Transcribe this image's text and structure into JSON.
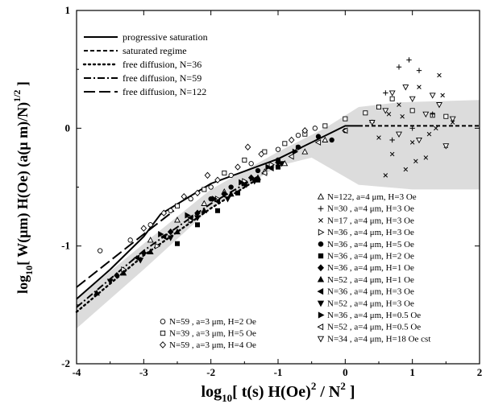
{
  "chart_data": {
    "type": "scatter",
    "x_label_parts": [
      "log",
      "10",
      "[ t(s) H(Oe)",
      "2",
      " / N",
      "2",
      " ]"
    ],
    "y_label_parts": [
      "log",
      "10",
      "[ W(μm) H(Oe)  (a(μ m)/N)",
      "1/2",
      " ]"
    ],
    "xlim": [
      -4,
      2
    ],
    "ylim": [
      -2,
      1
    ],
    "x_ticks": [
      -4,
      -3,
      -2,
      -1,
      0,
      1,
      2
    ],
    "y_ticks": [
      -2,
      -1,
      0,
      1
    ],
    "x_tick_labels": [
      "-4",
      "-3",
      "-2",
      "-1",
      "0",
      "1",
      "2"
    ],
    "y_tick_labels": [
      "-2",
      "-1",
      "0",
      "1"
    ],
    "band": {
      "upper": [
        [
          -4,
          -1.45
        ],
        [
          -3,
          -0.98
        ],
        [
          -2,
          -0.52
        ],
        [
          -1,
          -0.2
        ],
        [
          -0.3,
          0.0
        ],
        [
          0.2,
          0.18
        ],
        [
          0.8,
          0.22
        ],
        [
          2,
          0.24
        ]
      ],
      "lower": [
        [
          2,
          -0.52
        ],
        [
          1,
          -0.52
        ],
        [
          0.2,
          -0.48
        ],
        [
          -0.5,
          -0.25
        ],
        [
          -1,
          -0.32
        ],
        [
          -2,
          -0.68
        ],
        [
          -3,
          -1.2
        ],
        [
          -4,
          -1.7
        ]
      ]
    },
    "lines": [
      {
        "name": "progressive saturation",
        "style": "solid",
        "points": [
          [
            -4,
            -1.45
          ],
          [
            -3.5,
            -1.2
          ],
          [
            -3,
            -0.92
          ],
          [
            -2.75,
            -0.73
          ],
          [
            -2,
            -0.47
          ],
          [
            -1,
            -0.26
          ],
          [
            0,
            0.02
          ],
          [
            0.2,
            0.02
          ]
        ]
      },
      {
        "name": "saturated regime",
        "style": "dash",
        "points": [
          [
            0.2,
            0.02
          ],
          [
            2,
            0.02
          ]
        ]
      },
      {
        "name": "free diffusion, N=36",
        "style": "dot",
        "points": [
          [
            -4,
            -1.56
          ],
          [
            -3,
            -1.08
          ],
          [
            -2,
            -0.68
          ],
          [
            -1.3,
            -0.43
          ]
        ]
      },
      {
        "name": "free diffusion, N=59",
        "style": "dashdot",
        "points": [
          [
            -4,
            -1.52
          ],
          [
            -3,
            -1.04
          ],
          [
            -2,
            -0.64
          ],
          [
            -1.3,
            -0.41
          ]
        ]
      },
      {
        "name": "free diffusion, N=122",
        "style": "longdash",
        "points": [
          [
            -4,
            -1.35
          ],
          [
            -3,
            -0.9
          ],
          [
            -2.55,
            -0.7
          ]
        ]
      }
    ],
    "legend_lines": [
      "progressive saturation",
      "saturated regime",
      "free diffusion, N=36",
      "free diffusion, N=59",
      "free diffusion, N=122"
    ],
    "legend_markers_right": [
      {
        "marker": "triangle-up-open",
        "label": "N=122, a=4 μm, H=3 Oe"
      },
      {
        "marker": "plus",
        "label": "N=30 , a=4 μm, H=3 Oe"
      },
      {
        "marker": "cross",
        "label": "N=17 , a=4 μm, H=3 Oe"
      },
      {
        "marker": "triangle-right-open",
        "label": "N=36 , a=4 μm, H=3 Oe"
      },
      {
        "marker": "circle-filled",
        "label": "N=36 , a=4 μm, H=5 Oe"
      },
      {
        "marker": "square-filled",
        "label": "N=36 , a=4 μm, H=2 Oe"
      },
      {
        "marker": "diamond-filled",
        "label": "N=36 , a=4 μm, H=1 Oe"
      },
      {
        "marker": "triangle-up-filled",
        "label": "N=52 , a=4 μm, H=1 Oe"
      },
      {
        "marker": "triangle-left-filled",
        "label": "N=36 , a=4 μm, H=3 Oe"
      },
      {
        "marker": "triangle-down-filled",
        "label": "N=52 , a=4 μm, H=3 Oe"
      },
      {
        "marker": "triangle-right-filled",
        "label": "N=36 , a=4 μm, H=0.5 Oe"
      },
      {
        "marker": "triangle-left-open",
        "label": "N=52 , a=4 μm, H=0.5 Oe"
      },
      {
        "marker": "triangle-down-open",
        "label": "N=34 , a=4 μm, H=18 Oe cst"
      }
    ],
    "legend_markers_left": [
      {
        "marker": "circle-open",
        "label": "N=59 , a=3 μm, H=2 Oe"
      },
      {
        "marker": "square-open",
        "label": "N=39 , a=3 μm, H=5 Oe"
      },
      {
        "marker": "diamond-open",
        "label": "N=59 , a=3 μm, H=4 Oe"
      }
    ],
    "series": [
      {
        "marker": "circle-open",
        "points": [
          [
            -3.65,
            -1.04
          ],
          [
            -3.2,
            -0.95
          ],
          [
            -2.9,
            -0.82
          ],
          [
            -2.6,
            -0.7
          ],
          [
            -2.3,
            -0.6
          ],
          [
            -2.0,
            -0.5
          ],
          [
            -1.7,
            -0.4
          ],
          [
            -1.4,
            -0.3
          ],
          [
            -1.0,
            -0.18
          ],
          [
            -0.7,
            -0.06
          ],
          [
            -0.45,
            0.0
          ]
        ]
      },
      {
        "marker": "square-open",
        "points": [
          [
            -2.5,
            -0.66
          ],
          [
            -2.1,
            -0.52
          ],
          [
            -1.8,
            -0.38
          ],
          [
            -1.5,
            -0.27
          ],
          [
            -1.2,
            -0.2
          ],
          [
            -0.9,
            -0.13
          ],
          [
            -0.6,
            -0.05
          ],
          [
            -0.3,
            0.02
          ],
          [
            0.0,
            0.08
          ],
          [
            0.3,
            0.13
          ],
          [
            0.5,
            0.18
          ],
          [
            0.7,
            0.25
          ],
          [
            1.0,
            0.15
          ],
          [
            1.3,
            0.11
          ],
          [
            1.5,
            0.1
          ]
        ]
      },
      {
        "marker": "diamond-open",
        "points": [
          [
            -3.0,
            -0.85
          ],
          [
            -2.7,
            -0.72
          ],
          [
            -2.4,
            -0.58
          ],
          [
            -2.2,
            -0.55
          ],
          [
            -1.9,
            -0.44
          ],
          [
            -1.6,
            -0.33
          ],
          [
            -1.25,
            -0.22
          ],
          [
            -0.8,
            -0.1
          ],
          [
            -0.6,
            -0.02
          ],
          [
            -2.05,
            -0.4
          ],
          [
            -1.45,
            -0.16
          ]
        ]
      },
      {
        "marker": "triangle-up-open",
        "points": [
          [
            -2.9,
            -0.95
          ],
          [
            -2.5,
            -0.78
          ],
          [
            -2.1,
            -0.64
          ],
          [
            -1.8,
            -0.54
          ],
          [
            -1.5,
            -0.46
          ],
          [
            -1.2,
            -0.37
          ],
          [
            -0.9,
            -0.3
          ],
          [
            -0.6,
            -0.2
          ],
          [
            -0.3,
            -0.1
          ]
        ]
      },
      {
        "marker": "plus",
        "points": [
          [
            0.8,
            0.52
          ],
          [
            0.95,
            0.58
          ],
          [
            1.1,
            0.49
          ],
          [
            0.6,
            0.3
          ],
          [
            0.4,
            0.05
          ],
          [
            1.3,
            0.12
          ],
          [
            0.7,
            -0.1
          ],
          [
            1.0,
            0.0
          ]
        ]
      },
      {
        "marker": "cross",
        "points": [
          [
            0.5,
            -0.08
          ],
          [
            0.7,
            -0.22
          ],
          [
            0.9,
            -0.35
          ],
          [
            1.0,
            -0.12
          ],
          [
            1.2,
            -0.25
          ],
          [
            1.35,
            0.0
          ],
          [
            1.5,
            -0.15
          ],
          [
            1.6,
            0.05
          ],
          [
            0.8,
            0.2
          ],
          [
            1.1,
            0.35
          ],
          [
            1.4,
            0.45
          ],
          [
            0.6,
            -0.4
          ],
          [
            0.85,
            0.1
          ],
          [
            1.25,
            -0.05
          ],
          [
            1.45,
            0.28
          ],
          [
            0.65,
            0.12
          ],
          [
            1.05,
            -0.28
          ]
        ]
      },
      {
        "marker": "triangle-right-open",
        "points": [
          [
            -3.3,
            -1.2
          ],
          [
            -2.8,
            -1.0
          ],
          [
            -2.3,
            -0.78
          ],
          [
            -1.9,
            -0.6
          ],
          [
            -1.5,
            -0.45
          ],
          [
            -1.1,
            -0.31
          ],
          [
            -0.7,
            -0.17
          ]
        ]
      },
      {
        "marker": "circle-filled",
        "points": [
          [
            -2.0,
            -0.6
          ],
          [
            -1.7,
            -0.5
          ],
          [
            -1.3,
            -0.36
          ],
          [
            -1.0,
            -0.27
          ],
          [
            -0.7,
            -0.16
          ],
          [
            -0.4,
            -0.07
          ],
          [
            -0.2,
            -0.1
          ],
          [
            0.0,
            -0.02
          ]
        ]
      },
      {
        "marker": "square-filled",
        "points": [
          [
            -2.5,
            -0.98
          ],
          [
            -2.2,
            -0.82
          ],
          [
            -1.9,
            -0.7
          ],
          [
            -1.6,
            -0.55
          ],
          [
            -1.3,
            -0.44
          ],
          [
            -1.0,
            -0.33
          ]
        ]
      },
      {
        "marker": "diamond-filled",
        "points": [
          [
            -3.4,
            -1.25
          ],
          [
            -3.0,
            -1.06
          ],
          [
            -2.6,
            -0.88
          ],
          [
            -2.2,
            -0.72
          ],
          [
            -1.8,
            -0.56
          ],
          [
            -1.4,
            -0.42
          ],
          [
            -1.0,
            -0.29
          ]
        ]
      },
      {
        "marker": "triangle-up-filled",
        "points": [
          [
            -3.7,
            -1.4
          ],
          [
            -3.3,
            -1.23
          ],
          [
            -2.9,
            -1.05
          ],
          [
            -2.5,
            -0.88
          ],
          [
            -2.1,
            -0.7
          ],
          [
            -1.7,
            -0.56
          ],
          [
            -1.3,
            -0.42
          ]
        ]
      },
      {
        "marker": "triangle-left-filled",
        "points": [
          [
            -3.1,
            -1.1
          ],
          [
            -2.7,
            -0.92
          ],
          [
            -2.3,
            -0.76
          ],
          [
            -1.9,
            -0.62
          ],
          [
            -1.5,
            -0.48
          ],
          [
            -1.1,
            -0.34
          ]
        ]
      },
      {
        "marker": "triangle-down-filled",
        "points": [
          [
            -3.5,
            -1.3
          ],
          [
            -3.05,
            -1.12
          ],
          [
            -2.6,
            -0.93
          ],
          [
            -2.2,
            -0.76
          ],
          [
            -1.75,
            -0.6
          ],
          [
            -1.35,
            -0.45
          ],
          [
            -0.95,
            -0.3
          ]
        ]
      },
      {
        "marker": "triangle-right-filled",
        "points": [
          [
            -2.75,
            -0.9
          ],
          [
            -2.35,
            -0.74
          ],
          [
            -1.95,
            -0.6
          ],
          [
            -1.55,
            -0.46
          ],
          [
            -1.15,
            -0.33
          ],
          [
            -0.75,
            -0.2
          ]
        ]
      },
      {
        "marker": "triangle-left-open",
        "points": [
          [
            -1.2,
            -0.38
          ],
          [
            -0.8,
            -0.24
          ],
          [
            -0.4,
            -0.12
          ],
          [
            0.0,
            -0.02
          ]
        ]
      },
      {
        "marker": "triangle-down-open",
        "points": [
          [
            0.4,
            0.05
          ],
          [
            0.6,
            0.15
          ],
          [
            0.8,
            -0.05
          ],
          [
            1.0,
            0.25
          ],
          [
            1.2,
            0.12
          ],
          [
            1.4,
            0.2
          ],
          [
            1.6,
            0.08
          ],
          [
            0.9,
            0.35
          ],
          [
            1.1,
            -0.1
          ],
          [
            1.5,
            -0.15
          ],
          [
            0.7,
            0.3
          ],
          [
            1.3,
            0.28
          ]
        ]
      }
    ]
  }
}
